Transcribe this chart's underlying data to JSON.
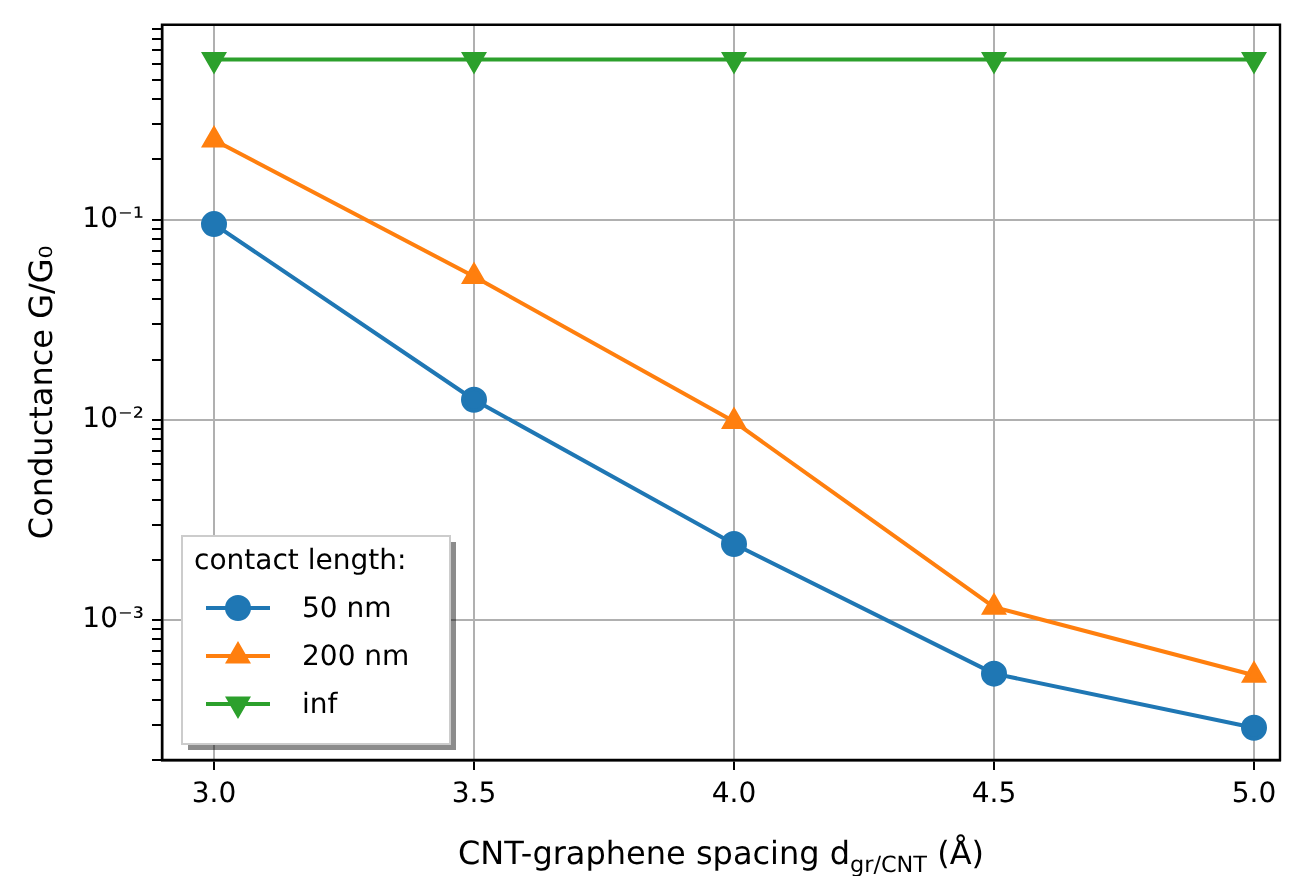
{
  "chart_data": {
    "type": "line",
    "xlabel": "CNT-graphene spacing d$_{gr/CNT}$ (Å)",
    "ylabel": "Conductance G/G₀",
    "x": [
      3.0,
      3.5,
      4.0,
      4.5,
      5.0
    ],
    "series": [
      {
        "name": "50 nm",
        "color": "#1f77b4",
        "marker": "circle",
        "values": [
          0.095,
          0.0126,
          0.0024,
          0.00054,
          0.00029
        ]
      },
      {
        "name": "200 nm",
        "color": "#ff7f0e",
        "marker": "triangle",
        "values": [
          0.25,
          0.052,
          0.0098,
          0.00116,
          0.00053
        ]
      },
      {
        "name": "inf",
        "color": "#2ca02c",
        "marker": "triangle_down",
        "values": [
          0.63,
          0.63,
          0.63,
          0.63,
          0.63
        ]
      }
    ],
    "legend_title": "contact length:",
    "legend": "bottom left",
    "log": "y",
    "grid": true,
    "line_style": "solid",
    "xlim": [
      2.9,
      5.05
    ],
    "xticks": [
      {
        "value": 3.0,
        "label": "3.0"
      },
      {
        "value": 3.5,
        "label": "3.5"
      },
      {
        "value": 4.0,
        "label": "4.0"
      },
      {
        "value": 4.5,
        "label": "4.5"
      },
      {
        "value": 5.0,
        "label": "5.0"
      }
    ],
    "ylim": [
      0.0002,
      0.94
    ],
    "yticks": [
      {
        "value": 0.0002,
        "label": null
      },
      {
        "value": 0.0003,
        "label": null
      },
      {
        "value": 0.0004,
        "label": null
      },
      {
        "value": 0.0005,
        "label": null
      },
      {
        "value": 0.0006,
        "label": null
      },
      {
        "value": 0.0007,
        "label": null
      },
      {
        "value": 0.0008,
        "label": null
      },
      {
        "value": 0.0009,
        "label": null
      },
      {
        "value": 0.001,
        "label": "10⁻³"
      },
      {
        "value": 0.002,
        "label": null
      },
      {
        "value": 0.003,
        "label": null
      },
      {
        "value": 0.004,
        "label": null
      },
      {
        "value": 0.005,
        "label": null
      },
      {
        "value": 0.006,
        "label": null
      },
      {
        "value": 0.007,
        "label": null
      },
      {
        "value": 0.008,
        "label": null
      },
      {
        "value": 0.009,
        "label": null
      },
      {
        "value": 0.01,
        "label": "10⁻²"
      },
      {
        "value": 0.02,
        "label": null
      },
      {
        "value": 0.03,
        "label": null
      },
      {
        "value": 0.04,
        "label": null
      },
      {
        "value": 0.05,
        "label": null
      },
      {
        "value": 0.06,
        "label": null
      },
      {
        "value": 0.07,
        "label": null
      },
      {
        "value": 0.08,
        "label": null
      },
      {
        "value": 0.09,
        "label": null
      },
      {
        "value": 0.1,
        "label": "10⁻¹"
      },
      {
        "value": 0.2,
        "label": null
      },
      {
        "value": 0.3,
        "label": null
      },
      {
        "value": 0.4,
        "label": null
      },
      {
        "value": 0.5,
        "label": null
      },
      {
        "value": 0.6,
        "label": null
      },
      {
        "value": 0.7,
        "label": null
      },
      {
        "value": 0.8,
        "label": null
      },
      {
        "value": 0.9,
        "label": null
      }
    ]
  }
}
